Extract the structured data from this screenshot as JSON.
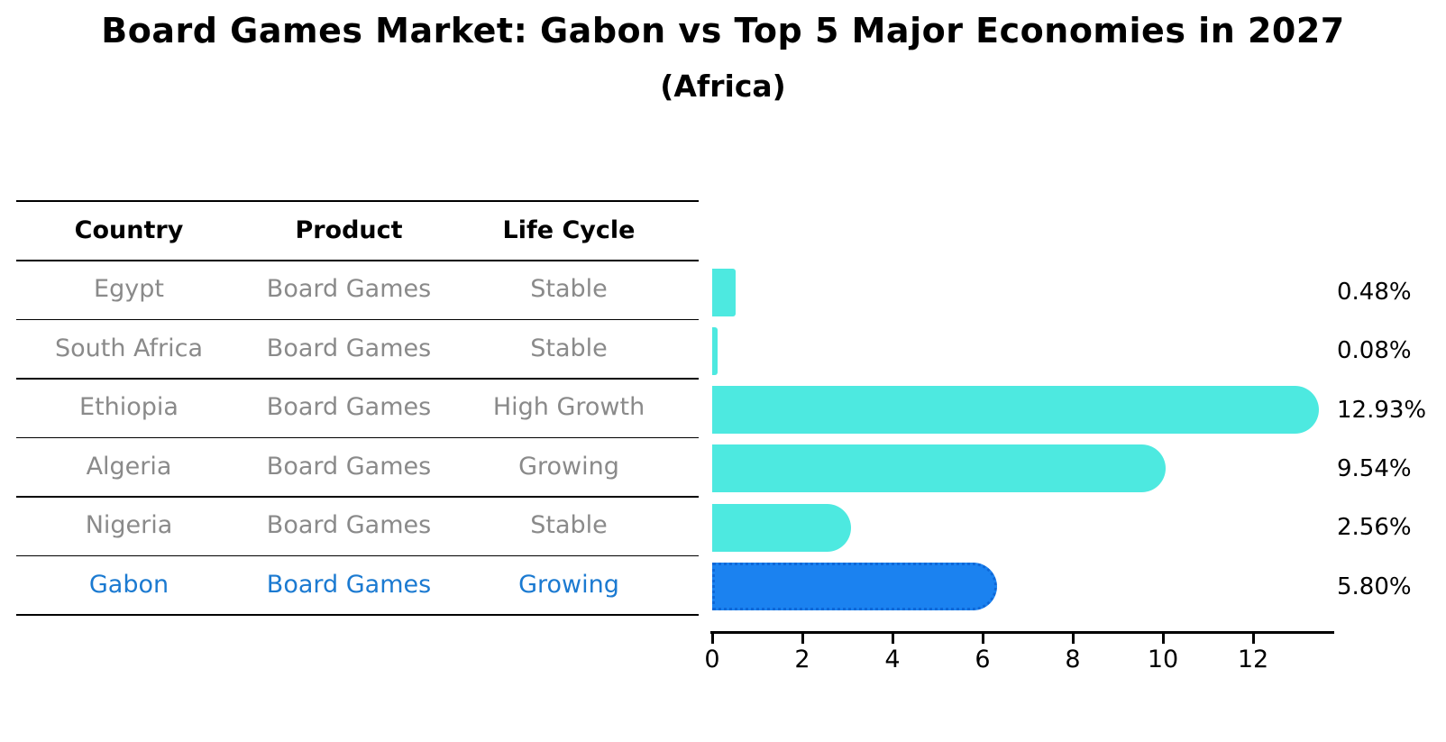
{
  "title": "Board Games Market: Gabon vs Top 5 Major Economies in 2027",
  "subtitle": "(Africa)",
  "table": {
    "headers": [
      "Country",
      "Product",
      "Life Cycle"
    ],
    "rows": [
      {
        "country": "Egypt",
        "product": "Board Games",
        "life_cycle": "Stable"
      },
      {
        "country": "South Africa",
        "product": "Board Games",
        "life_cycle": "Stable"
      },
      {
        "country": "Ethiopia",
        "product": "Board Games",
        "life_cycle": "High Growth"
      },
      {
        "country": "Algeria",
        "product": "Board Games",
        "life_cycle": "Growing"
      },
      {
        "country": "Nigeria",
        "product": "Board Games",
        "life_cycle": "Stable"
      },
      {
        "country": "Gabon",
        "product": "Board Games",
        "life_cycle": "Growing"
      }
    ],
    "highlight_row": "Gabon"
  },
  "chart_data": {
    "type": "bar",
    "orientation": "horizontal",
    "title": "Board Games Market: Gabon vs Top 5 Major Economies in 2027",
    "subtitle": "(Africa)",
    "categories": [
      "Egypt",
      "South Africa",
      "Ethiopia",
      "Algeria",
      "Nigeria",
      "Gabon"
    ],
    "values": [
      0.48,
      0.08,
      12.93,
      9.54,
      2.56,
      5.8
    ],
    "value_labels": [
      "0.48%",
      "0.08%",
      "12.93%",
      "9.54%",
      "2.56%",
      "5.80%"
    ],
    "x_ticks": [
      0,
      2,
      4,
      6,
      8,
      10,
      12
    ],
    "xlim": [
      0,
      13.75
    ],
    "xlabel": "",
    "ylabel": "",
    "grid": false,
    "legend": "none",
    "highlight_index": 5
  },
  "colors": {
    "bar": "#4DE9E0",
    "highlight": "#1B82F0",
    "highlight-border": "#0E68D8",
    "highlight-text": "#1B7AD1",
    "row-text": "#8A8A8A",
    "axis": "#000000"
  }
}
